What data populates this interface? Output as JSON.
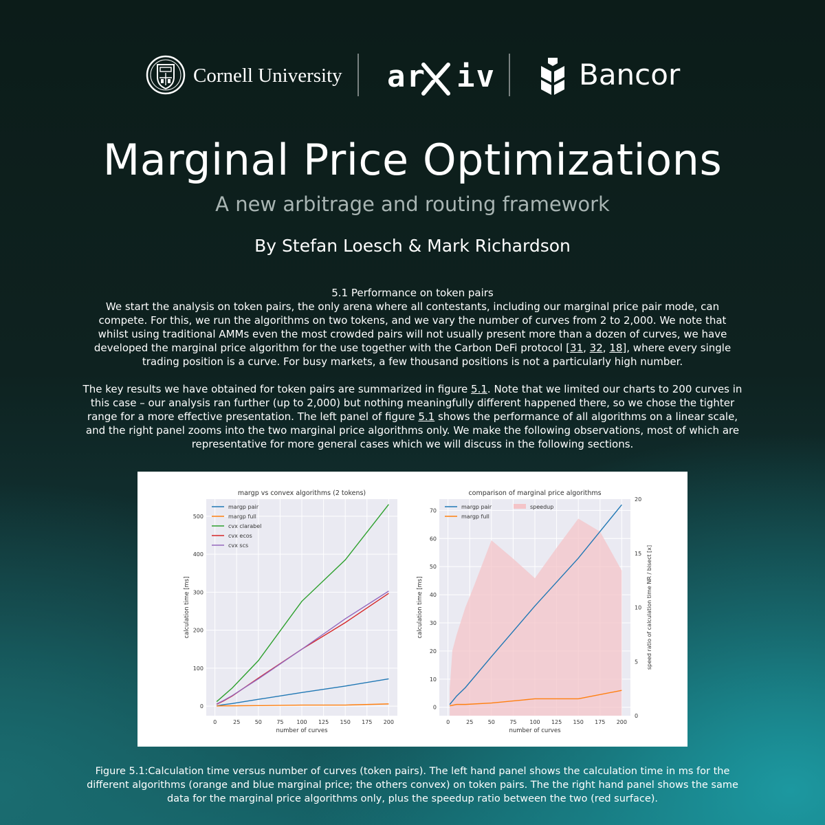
{
  "logos": {
    "cornell": "Cornell University",
    "arxiv": "arXiv",
    "bancor": "Bancor"
  },
  "title": "Marginal Price Optimizations",
  "subtitle": "A new arbitrage and routing framework",
  "authors": "By Stefan Loesch & Mark Richardson",
  "section": {
    "heading": "5.1 Performance on token pairs",
    "para1": "We start the analysis on token pairs, the only arena where all contestants, including our marginal price pair mode, can compete. For this, we run the algorithms on two tokens, and we vary the number of curves from 2 to 2,000. We note that whilst using traditional AMMs even the most crowded pairs will not usually present more than a dozen of curves, we have developed the marginal price algorithm for the use together with the Carbon DeFi protocol [",
    "ref31": "31",
    "sep1": ", ",
    "ref32": "32",
    "sep2": ", ",
    "ref18": "18",
    "para1_end": "], where every single trading position is a curve. For busy markets, a few thousand positions is not a particularly high number.",
    "para2_a": "The key results we have obtained for token pairs are summarized in figure ",
    "fig_ref": "5.1",
    "para2_b": ". Note that we limited our charts to 200 curves in this case – our analysis ran further (up to 2,000) but nothing meaningfully different happened there, so we chose the tighter range for a more effective presentation. The left panel of figure ",
    "para2_c": " shows the performance of all algorithms on a linear scale, and the right panel zooms into the two marginal price algorithms only. We make the following observations, most of which are representative for more general cases which we will discuss in the following sections."
  },
  "caption": "Figure 5.1:Calculation time versus number of curves (token pairs). The left hand panel shows the calculation time in ms for the different algorithms (orange and blue marginal price; the others convex) on token pairs. The the right hand panel shows the same data for the marginal price algorithms only, plus the speedup ratio between the two (red surface).",
  "chart_data": [
    {
      "type": "line",
      "title": "margp vs convex algorithms (2 tokens)",
      "xlabel": "number of curves",
      "ylabel": "calculation time [ms]",
      "xlim": [
        -10,
        210
      ],
      "ylim": [
        -25,
        545
      ],
      "xticks": [
        0,
        25,
        50,
        75,
        100,
        125,
        150,
        175,
        200
      ],
      "yticks": [
        0,
        100,
        200,
        300,
        400,
        500
      ],
      "grid": true,
      "legend": "top-left",
      "series": [
        {
          "name": "margp pair",
          "color": "#1f77b4",
          "x": [
            2,
            10,
            20,
            50,
            100,
            150,
            200
          ],
          "y": [
            1,
            4,
            7,
            18,
            36,
            53,
            72
          ]
        },
        {
          "name": "margp full",
          "color": "#ff7f0e",
          "x": [
            2,
            10,
            20,
            50,
            100,
            150,
            200
          ],
          "y": [
            0.5,
            1,
            1,
            1.5,
            3,
            3,
            6
          ]
        },
        {
          "name": "cvx clarabel",
          "color": "#2ca02c",
          "x": [
            2,
            10,
            20,
            50,
            100,
            150,
            200
          ],
          "y": [
            12,
            28,
            48,
            120,
            276,
            385,
            531
          ]
        },
        {
          "name": "cvx ecos",
          "color": "#d62728",
          "x": [
            2,
            10,
            20,
            50,
            100,
            150,
            200
          ],
          "y": [
            5,
            14,
            27,
            74,
            150,
            220,
            297
          ]
        },
        {
          "name": "cvx scs",
          "color": "#9467bd",
          "x": [
            2,
            10,
            20,
            50,
            100,
            150,
            200
          ],
          "y": [
            6,
            15,
            28,
            72,
            150,
            230,
            303
          ]
        }
      ]
    },
    {
      "type": "line",
      "title": "comparison of marginal price algorithms",
      "xlabel": "number of curves",
      "ylabel": "calculation time [ms]",
      "y2label": "speed ratio of calculation time NR / bisect [x]",
      "xlim": [
        -10,
        210
      ],
      "ylim": [
        -3,
        74
      ],
      "y2lim": [
        0,
        20
      ],
      "xticks": [
        0,
        25,
        50,
        75,
        100,
        125,
        150,
        175,
        200
      ],
      "yticks": [
        0,
        10,
        20,
        30,
        40,
        50,
        60,
        70
      ],
      "y2ticks": [
        0,
        5,
        10,
        15,
        20
      ],
      "grid": true,
      "legend": "top-left",
      "series": [
        {
          "name": "margp pair",
          "color": "#1f77b4",
          "x": [
            2,
            10,
            20,
            50,
            100,
            150,
            200
          ],
          "y": [
            1,
            4,
            7,
            18,
            36,
            53,
            72
          ]
        },
        {
          "name": "margp full",
          "color": "#ff7f0e",
          "x": [
            2,
            10,
            20,
            50,
            100,
            150,
            200
          ],
          "y": [
            0.5,
            1,
            1,
            1.5,
            3,
            3,
            6
          ]
        }
      ],
      "area": {
        "name": "speedup",
        "color": "#f4c4c8",
        "axis": "right",
        "x": [
          2,
          5,
          10,
          20,
          30,
          50,
          75,
          100,
          125,
          150,
          175,
          200
        ],
        "y": [
          2.5,
          6,
          7.5,
          10,
          12,
          16.2,
          14.5,
          12.7,
          15.5,
          18.2,
          17,
          13.4
        ]
      }
    }
  ]
}
